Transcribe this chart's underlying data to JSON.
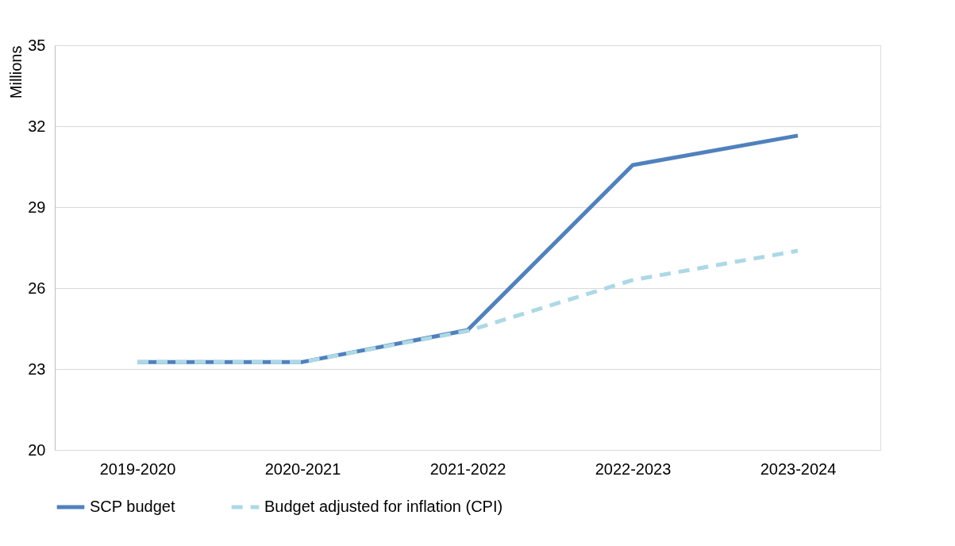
{
  "chart_data": {
    "type": "line",
    "ylabel": "Millions",
    "categories": [
      "2019-2020",
      "2020-2021",
      "2021-2022",
      "2022-2023",
      "2023-2024"
    ],
    "series": [
      {
        "name": "SCP budget",
        "color": "#4f81bd",
        "line_style": "solid",
        "values": [
          23.26,
          23.26,
          24.44,
          30.56,
          31.65
        ]
      },
      {
        "name": "Budget adjusted for inflation (CPI)",
        "color": "#add8e6",
        "line_style": "dashed",
        "values": [
          23.26,
          23.26,
          24.41,
          26.3,
          27.38
        ]
      }
    ],
    "ylim": [
      20,
      35
    ],
    "yticks": [
      20,
      23,
      26,
      29,
      32,
      35
    ],
    "grid": "y",
    "legend": "bottom",
    "marker": "none"
  }
}
